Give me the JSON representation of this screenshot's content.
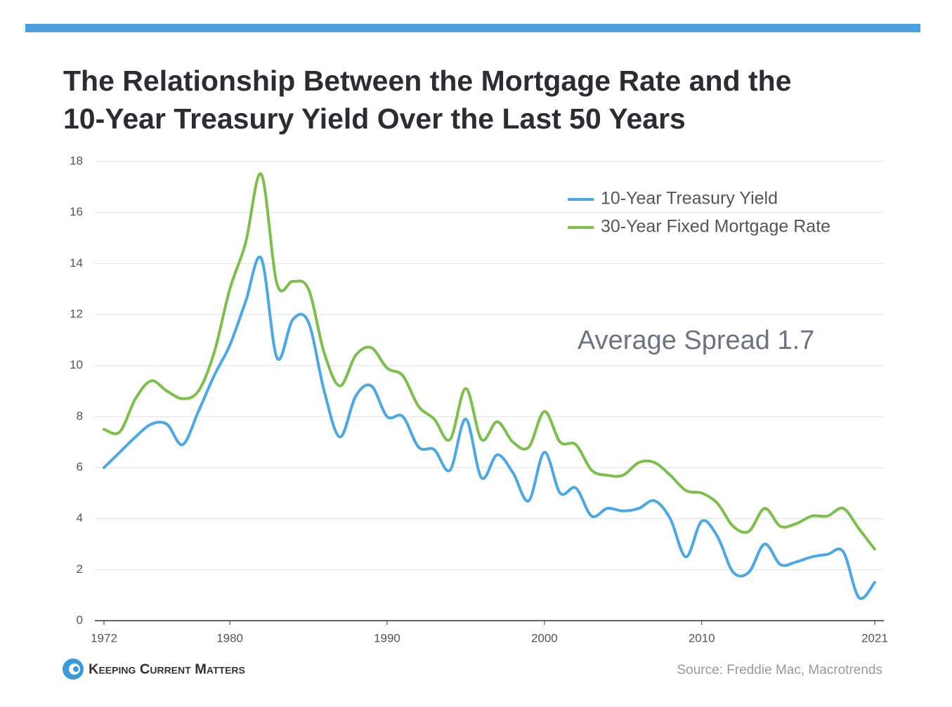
{
  "chart_data": {
    "type": "line",
    "title": "The Relationship Between the Mortgage Rate and the",
    "subtitle": "10-Year Treasury Yield Over the Last 50 Years",
    "annotation": "Average Spread 1.7",
    "source": "Source: Freddie Mac, Macrotrends",
    "brand": "Keeping Current Matters",
    "x": [
      1972,
      1973,
      1974,
      1975,
      1976,
      1977,
      1978,
      1979,
      1980,
      1981,
      1982,
      1983,
      1984,
      1985,
      1986,
      1987,
      1988,
      1989,
      1990,
      1991,
      1992,
      1993,
      1994,
      1995,
      1996,
      1997,
      1998,
      1999,
      2000,
      2001,
      2002,
      2003,
      2004,
      2005,
      2006,
      2007,
      2008,
      2009,
      2010,
      2011,
      2012,
      2013,
      2014,
      2015,
      2016,
      2017,
      2018,
      2019,
      2020,
      2021
    ],
    "series": [
      {
        "name": "10-Year Treasury Yield",
        "color": "#4aa8e6",
        "values": [
          6.0,
          6.6,
          7.2,
          7.7,
          7.7,
          6.9,
          8.2,
          9.6,
          10.8,
          12.5,
          14.2,
          10.3,
          11.8,
          11.7,
          9.0,
          7.2,
          8.8,
          9.2,
          8.0,
          8.0,
          6.8,
          6.7,
          5.9,
          7.9,
          5.6,
          6.5,
          5.8,
          4.7,
          6.6,
          5.0,
          5.2,
          4.1,
          4.4,
          4.3,
          4.4,
          4.7,
          4.0,
          2.5,
          3.9,
          3.3,
          1.9,
          1.9,
          3.0,
          2.2,
          2.3,
          2.5,
          2.6,
          2.7,
          0.9,
          1.5
        ]
      },
      {
        "name": "30-Year Fixed Mortgage Rate",
        "color": "#7cc04b",
        "values": [
          7.5,
          7.4,
          8.7,
          9.4,
          9.0,
          8.7,
          9.0,
          10.5,
          13.0,
          14.8,
          17.5,
          13.2,
          13.3,
          13.0,
          10.5,
          9.2,
          10.4,
          10.7,
          9.9,
          9.6,
          8.4,
          7.9,
          7.1,
          9.1,
          7.1,
          7.8,
          7.0,
          6.8,
          8.2,
          7.0,
          6.9,
          5.9,
          5.7,
          5.7,
          6.2,
          6.2,
          5.7,
          5.1,
          5.0,
          4.6,
          3.7,
          3.5,
          4.4,
          3.7,
          3.8,
          4.1,
          4.1,
          4.4,
          3.6,
          2.8
        ]
      }
    ],
    "xlim": [
      1972,
      2021
    ],
    "xticks": [
      1972,
      1980,
      1990,
      2000,
      2010,
      2021
    ],
    "ylim": [
      0,
      18
    ],
    "yticks": [
      0,
      2,
      4,
      6,
      8,
      10,
      12,
      14,
      16,
      18
    ],
    "grid": true,
    "legend": "top-right"
  }
}
